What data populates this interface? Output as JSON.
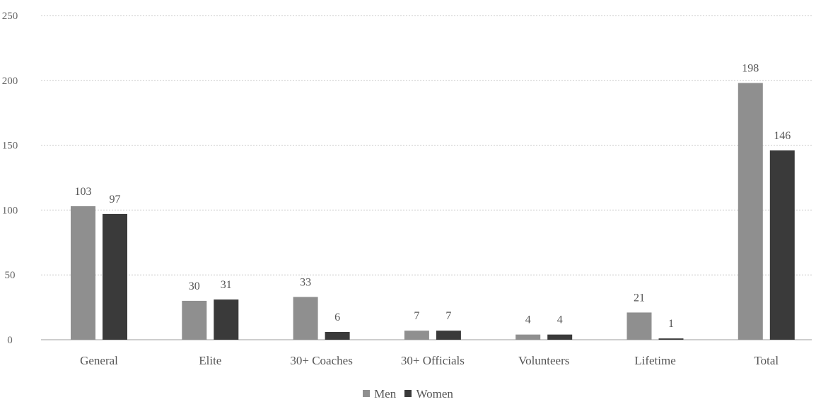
{
  "chart_data": {
    "type": "bar",
    "categories": [
      "General",
      "Elite",
      "30+ Coaches",
      "30+ Officials",
      "Volunteers",
      "Lifetime",
      "Total"
    ],
    "series": [
      {
        "name": "Men",
        "color": "#8f8f8f",
        "values": [
          103,
          30,
          33,
          7,
          4,
          21,
          198
        ]
      },
      {
        "name": "Women",
        "color": "#3a3a3a",
        "values": [
          97,
          31,
          6,
          7,
          4,
          1,
          146
        ]
      }
    ],
    "ylim": [
      0,
      250
    ],
    "yticks": [
      0,
      50,
      100,
      150,
      200,
      250
    ],
    "grid": true,
    "legend_position": "bottom-center",
    "title": "",
    "xlabel": "",
    "ylabel": ""
  }
}
